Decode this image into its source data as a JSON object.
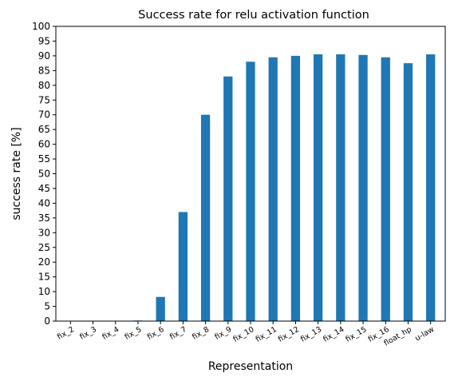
{
  "chart_data": {
    "type": "bar",
    "title": "Success rate for relu activation function",
    "xlabel": "Representation",
    "ylabel": "success rate [%]",
    "ylim": [
      0,
      100
    ],
    "yticks": [
      0,
      5,
      10,
      15,
      20,
      25,
      30,
      35,
      40,
      45,
      50,
      55,
      60,
      65,
      70,
      75,
      80,
      85,
      90,
      95,
      100
    ],
    "categories": [
      "fix_2",
      "fix_3",
      "fix_4",
      "fix_5",
      "fix_6",
      "fix_7",
      "fix_8",
      "fix_9",
      "fix_10",
      "fix_11",
      "fix_12",
      "fix_13",
      "fix_14",
      "fix_15",
      "fix_16",
      "float_hp",
      "u-law"
    ],
    "values": [
      0,
      0,
      0,
      0.2,
      8.2,
      37,
      70,
      83,
      88,
      89.5,
      90,
      90.5,
      90.5,
      90.3,
      89.5,
      87.5,
      90.5
    ],
    "bar_color": "#1f77b4",
    "grid": false,
    "legend": "none"
  }
}
